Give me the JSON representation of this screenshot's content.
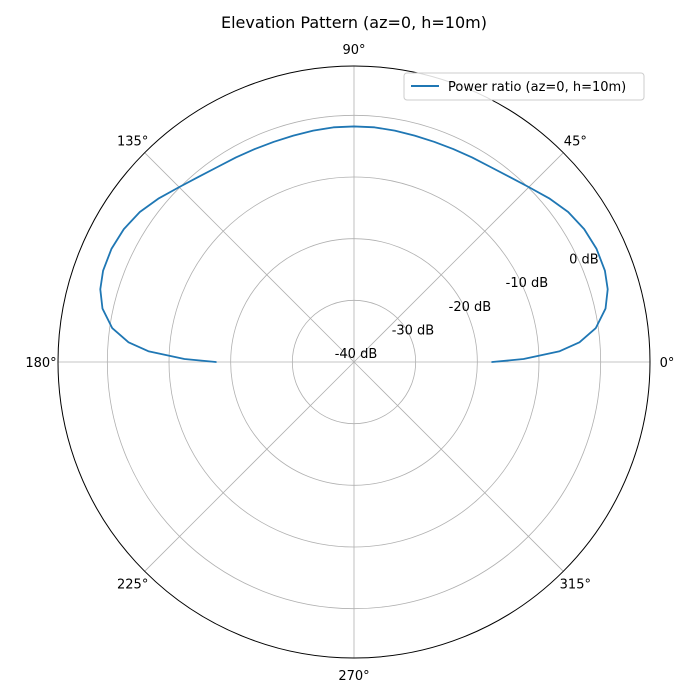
{
  "chart_data": {
    "type": "line",
    "projection": "polar",
    "title": "Elevation Pattern (az=0, h=10m)",
    "theta_unit": "degrees",
    "theta_tick_labels": [
      "0°",
      "45°",
      "90°",
      "135°",
      "180°",
      "225°",
      "270°",
      "315°"
    ],
    "theta_ticks": [
      0,
      45,
      90,
      135,
      180,
      225,
      270,
      315
    ],
    "r_unit": "dB",
    "r_ticks": [
      -40,
      -30,
      -20,
      -10,
      0
    ],
    "r_tick_labels": [
      "-40 dB",
      "-30 dB",
      "-20 dB",
      "-10 dB",
      "0 dB"
    ],
    "r_range": [
      -40,
      8
    ],
    "grid": true,
    "legend_position": "top-right",
    "series": [
      {
        "name": "Power ratio (az=0, h=10m)",
        "color": "#1f77b4",
        "theta": [
          0,
          1,
          3,
          5,
          8,
          12,
          16,
          20,
          25,
          30,
          35,
          40,
          45,
          50,
          55,
          60,
          65,
          70,
          75,
          80,
          85,
          90,
          95,
          100,
          105,
          110,
          115,
          120,
          125,
          130,
          135,
          140,
          145,
          150,
          155,
          160,
          164,
          168,
          172,
          175,
          177,
          179,
          180
        ],
        "r_db": [
          -17.6,
          -12.5,
          -6.6,
          -3.3,
          -0.4,
          1.7,
          2.8,
          3.3,
          3.4,
          3.1,
          2.4,
          1.3,
          0.1,
          -0.8,
          -1.4,
          -1.7,
          -1.9,
          -2.0,
          -2.0,
          -1.9,
          -1.8,
          -1.8,
          -1.8,
          -1.9,
          -2.0,
          -2.0,
          -1.9,
          -1.7,
          -1.4,
          -0.8,
          0.1,
          1.3,
          2.4,
          3.1,
          3.4,
          3.3,
          2.8,
          1.7,
          -0.4,
          -3.3,
          -6.6,
          -12.5,
          -17.6
        ]
      }
    ]
  }
}
